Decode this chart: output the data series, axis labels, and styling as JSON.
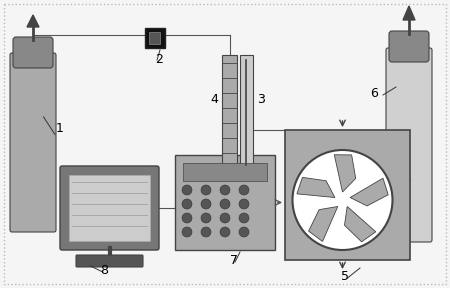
{
  "bg_color": "#f5f5f5",
  "border_color": "#999999",
  "cyl1_color": "#aaaaaa",
  "cyl6_color": "#d0d0d0",
  "cap1_color": "#777777",
  "cap6_color": "#888888",
  "box_color": "#aaaaaa",
  "dark": "#444444",
  "pipe_color": "#555555",
  "line_color": "#333333",
  "label_fontsize": 9
}
